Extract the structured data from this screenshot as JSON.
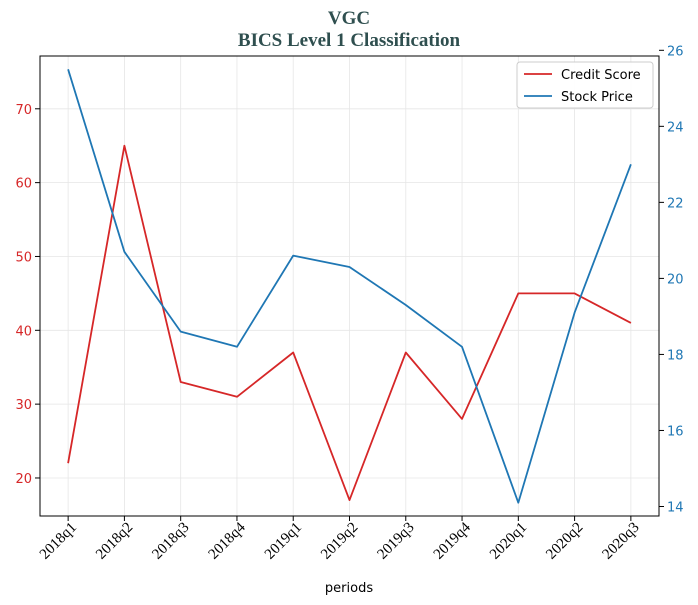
{
  "chart_data": {
    "type": "line",
    "title": "VGC",
    "subtitle": "BICS Level 1 Classification",
    "xlabel": "periods",
    "categories": [
      "2018q1",
      "2018q2",
      "2018q3",
      "2018q4",
      "2019q1",
      "2019q2",
      "2019q3",
      "2019q4",
      "2020q1",
      "2020q2",
      "2020q3"
    ],
    "series": [
      {
        "name": "Credit Score",
        "axis": "left",
        "color": "#d62728",
        "values": [
          22,
          65,
          33,
          31,
          37,
          17,
          37,
          28,
          45,
          45,
          41
        ]
      },
      {
        "name": "Stock Price",
        "axis": "right",
        "color": "#1f77b4",
        "values": [
          25.5,
          20.7,
          18.6,
          18.2,
          20.6,
          20.3,
          19.3,
          18.2,
          14.1,
          19.1,
          23.0
        ]
      }
    ],
    "y_left": {
      "ylim": [
        14.85,
        77.15
      ],
      "ticks": [
        20,
        30,
        40,
        50,
        60,
        70
      ],
      "color": "#d62728"
    },
    "y_right": {
      "ylim": [
        13.75,
        25.85
      ],
      "ticks": [
        14,
        16,
        18,
        20,
        22,
        24,
        26
      ],
      "color": "#1f77b4"
    },
    "grid": true,
    "legend_position": "top-right"
  }
}
